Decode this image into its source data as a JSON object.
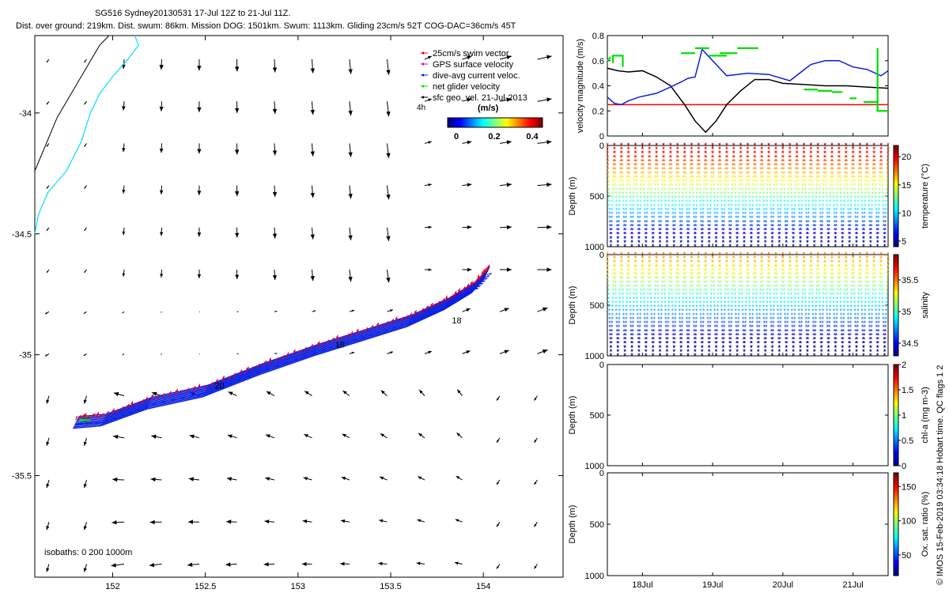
{
  "header": {
    "title": "SG516 Sydney20130531 17-Jul 12Z to 21-Jul 11Z.",
    "subtitle": "Dist. over ground: 219km. Dist. swum: 86km. Mission DOG: 1501km. Swum: 1113km. Gliding 23cm/s 52T COG-DAC=36cm/s 45T"
  },
  "side_note": "© IMOS 15-Feb-2019 03:34:18 Hobart time. QC flags 1  2",
  "colors": {
    "swim": "#e8001c",
    "gps": "#d400d4",
    "dac": "#0a1fe0",
    "net": "#00e000",
    "sfc": "#000000",
    "coast": "#00e0ff",
    "isobath": "#000000"
  },
  "map": {
    "xlim": [
      151.58,
      154.43
    ],
    "ylim": [
      -35.92,
      -33.68
    ],
    "xticks": [
      152,
      152.5,
      153,
      153.5,
      154
    ],
    "xtick_labels": [
      "152",
      "152.5",
      "153",
      "153.5",
      "154"
    ],
    "yticks": [
      -34,
      -34.5,
      -35,
      -35.5
    ],
    "ytick_labels": [
      "-34",
      "-34.5",
      "-35",
      "-35.5"
    ],
    "isobath_note": "isobaths: 0   200  1000m",
    "track_labels": [
      {
        "text": "18",
        "lon": 153.83,
        "lat": -34.87
      },
      {
        "text": "18",
        "lon": 153.2,
        "lat": -34.97
      },
      {
        "text": "20",
        "lon": 152.55,
        "lat": -35.14
      }
    ],
    "colorbar": {
      "title": "(m/s)",
      "ticks": [
        0,
        0.2,
        0.4
      ],
      "tick_labels": [
        "0",
        "0.2",
        "0.4"
      ],
      "range": [
        0,
        0.5
      ]
    },
    "legend": [
      {
        "label": "25cm/s swim vector",
        "color": "#e8001c"
      },
      {
        "label": "GPS surface velocity",
        "color": "#d400d4"
      },
      {
        "label": "dive-avg current veloc.",
        "color": "#0a1fe0"
      },
      {
        "label": "net glider velocity",
        "color": "#00e000"
      },
      {
        "label": "sfc geo. vel. 21-Jul-2013",
        "color": "#000000"
      }
    ],
    "legend_extra": "4h"
  },
  "chart_data": [
    {
      "type": "line",
      "title": "velocity magnitude",
      "xlabel": "",
      "ylabel": "velocity magnitude (m/s)",
      "xlim": [
        17.5,
        21.5
      ],
      "ylim": [
        0,
        0.8
      ],
      "yticks": [
        0,
        0.2,
        0.4,
        0.6,
        0.8
      ],
      "ytick_labels": [
        "0",
        "0.2",
        "0.4",
        "0.6",
        "0.8"
      ],
      "series": [
        {
          "name": "red (25cm/s swim)",
          "color": "#ff0000",
          "x": [
            17.5,
            21.5
          ],
          "y": [
            0.25,
            0.25
          ]
        },
        {
          "name": "black",
          "color": "#000000",
          "x": [
            17.5,
            17.65,
            17.8,
            18.0,
            18.2,
            18.4,
            18.6,
            18.75,
            18.9,
            19.05,
            19.2,
            19.4,
            19.6,
            19.8,
            20.0,
            20.3,
            20.6,
            20.9,
            21.2,
            21.5
          ],
          "y": [
            0.54,
            0.52,
            0.51,
            0.52,
            0.47,
            0.4,
            0.25,
            0.12,
            0.03,
            0.12,
            0.25,
            0.36,
            0.45,
            0.45,
            0.42,
            0.41,
            0.4,
            0.4,
            0.39,
            0.38
          ]
        },
        {
          "name": "blue",
          "color": "#0a1fe0",
          "x": [
            17.5,
            17.6,
            17.7,
            17.8,
            17.95,
            18.2,
            18.4,
            18.55,
            18.65,
            18.75,
            18.85,
            19.0,
            19.2,
            19.5,
            19.8,
            20.1,
            20.4,
            20.6,
            20.8,
            21.0,
            21.2,
            21.4,
            21.5
          ],
          "y": [
            0.31,
            0.26,
            0.25,
            0.28,
            0.31,
            0.34,
            0.39,
            0.43,
            0.46,
            0.47,
            0.69,
            0.6,
            0.48,
            0.5,
            0.49,
            0.44,
            0.57,
            0.6,
            0.6,
            0.55,
            0.53,
            0.48,
            0.52
          ]
        },
        {
          "name": "green segments",
          "color": "#00e000",
          "segments": [
            [
              [
                17.5,
                0.6
              ],
              [
                17.55,
                0.63
              ]
            ],
            [
              [
                17.58,
                0.58
              ],
              [
                17.58,
                0.64
              ],
              [
                17.72,
                0.64
              ],
              [
                17.72,
                0.55
              ]
            ],
            [
              [
                18.55,
                0.66
              ],
              [
                18.75,
                0.66
              ]
            ],
            [
              [
                18.75,
                0.7
              ],
              [
                18.95,
                0.7
              ]
            ],
            [
              [
                18.95,
                0.64
              ],
              [
                19.2,
                0.64
              ]
            ],
            [
              [
                19.1,
                0.66
              ],
              [
                19.35,
                0.66
              ]
            ],
            [
              [
                19.35,
                0.7
              ],
              [
                19.65,
                0.7
              ]
            ],
            [
              [
                20.3,
                0.37
              ],
              [
                20.5,
                0.37
              ]
            ],
            [
              [
                20.5,
                0.36
              ],
              [
                20.7,
                0.36
              ]
            ],
            [
              [
                20.7,
                0.35
              ],
              [
                20.85,
                0.35
              ]
            ],
            [
              [
                20.95,
                0.3
              ],
              [
                21.05,
                0.3
              ]
            ],
            [
              [
                21.15,
                0.27
              ],
              [
                21.35,
                0.27
              ]
            ],
            [
              [
                21.35,
                0.7
              ],
              [
                21.35,
                0.2
              ],
              [
                21.5,
                0.2
              ]
            ]
          ]
        }
      ]
    },
    {
      "type": "scatter",
      "title": "temperature",
      "ylabel": "Depth (m)",
      "ylim": [
        0,
        1000
      ],
      "yticks": [
        0,
        500,
        1000
      ],
      "ytick_labels": [
        "0",
        "500",
        "1000"
      ],
      "colorbar_label": "temperature (°C)",
      "colorbar_ticks": [
        5,
        10,
        15,
        20
      ],
      "colorbar_tick_labels": [
        "5",
        "10",
        "15",
        "20"
      ],
      "colorbar_range": [
        4,
        22
      ],
      "profiles_near_max": [
        1000,
        1000,
        1000,
        900,
        1000,
        1000,
        850,
        1000,
        1000,
        1000,
        1000,
        1000,
        1000,
        1000,
        1000,
        1000,
        1000,
        1000,
        1000,
        1000,
        1000,
        1000,
        1000,
        1000,
        1000,
        1000,
        1000,
        1000,
        1000,
        1000,
        1000,
        1000,
        1000,
        1000,
        1000,
        1000,
        1000,
        1000,
        1000,
        1000
      ]
    },
    {
      "type": "scatter",
      "title": "salinity",
      "ylabel": "Depth (m)",
      "ylim": [
        0,
        1000
      ],
      "yticks": [
        0,
        500,
        1000
      ],
      "ytick_labels": [
        "0",
        "500",
        "1000"
      ],
      "colorbar_label": "salinity",
      "colorbar_ticks": [
        34.5,
        35,
        35.5
      ],
      "colorbar_tick_labels": [
        "34.5",
        "35",
        "35.5"
      ],
      "colorbar_range": [
        34.3,
        35.9
      ]
    },
    {
      "type": "scatter",
      "title": "chl-a",
      "ylabel": "Depth (m)",
      "ylim": [
        0,
        1000
      ],
      "yticks": [
        0,
        500,
        1000
      ],
      "ytick_labels": [
        "0",
        "500",
        "1000"
      ],
      "colorbar_label": "chl-a (mg m-3)",
      "colorbar_ticks": [
        0,
        0.5,
        1,
        1.5,
        2
      ],
      "colorbar_tick_labels": [
        "0",
        "0.5",
        "1",
        "1.5",
        "2"
      ],
      "colorbar_range": [
        0,
        2
      ]
    },
    {
      "type": "scatter",
      "title": "oxygen saturation",
      "ylabel": "Depth (m)",
      "ylim": [
        0,
        1000
      ],
      "yticks": [
        0,
        500,
        1000
      ],
      "ytick_labels": [
        "0",
        "500",
        "1000"
      ],
      "colorbar_label": "Ox. sat. ratio (%)",
      "colorbar_ticks": [
        50,
        100,
        150
      ],
      "colorbar_tick_labels": [
        "50",
        "100",
        "150"
      ],
      "colorbar_range": [
        20,
        170
      ]
    }
  ],
  "time_axis": {
    "xlim": [
      17.5,
      21.5
    ],
    "ticks": [
      18,
      19,
      20,
      21
    ],
    "tick_labels": [
      "18Jul",
      "19Jul",
      "20Jul",
      "21Jul"
    ]
  }
}
